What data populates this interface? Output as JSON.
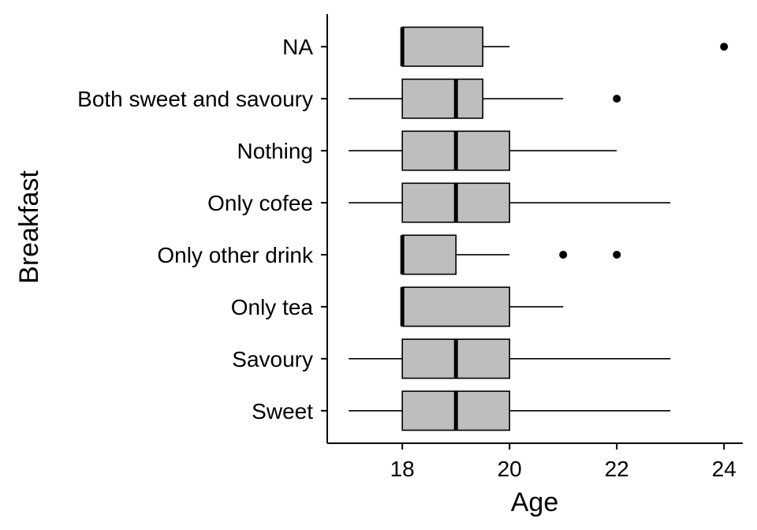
{
  "chart_data": {
    "type": "boxplot",
    "orientation": "horizontal",
    "xlabel": "Age",
    "ylabel": "Breakfast",
    "xlim": [
      16.6,
      24.35
    ],
    "xticks": [
      18,
      20,
      22,
      24
    ],
    "grid": false,
    "box_fill": "#bebebe",
    "line_color": "#000000",
    "categories": [
      "NA",
      "Both sweet and savoury",
      "Nothing",
      "Only cofee",
      "Only other drink",
      "Only tea",
      "Savoury",
      "Sweet"
    ],
    "boxes": [
      {
        "category": "NA",
        "whisker_low": 18,
        "q1": 18,
        "median": 18,
        "q3": 19.5,
        "whisker_high": 20,
        "outliers": [
          24
        ]
      },
      {
        "category": "Both sweet and savoury",
        "whisker_low": 17,
        "q1": 18,
        "median": 19,
        "q3": 19.5,
        "whisker_high": 21,
        "outliers": [
          22
        ]
      },
      {
        "category": "Nothing",
        "whisker_low": 17,
        "q1": 18,
        "median": 19,
        "q3": 20,
        "whisker_high": 22,
        "outliers": []
      },
      {
        "category": "Only cofee",
        "whisker_low": 17,
        "q1": 18,
        "median": 19,
        "q3": 20,
        "whisker_high": 23,
        "outliers": []
      },
      {
        "category": "Only other drink",
        "whisker_low": 18,
        "q1": 18,
        "median": 18,
        "q3": 19,
        "whisker_high": 20,
        "outliers": [
          21,
          22
        ]
      },
      {
        "category": "Only tea",
        "whisker_low": 18,
        "q1": 18,
        "median": 18,
        "q3": 20,
        "whisker_high": 21,
        "outliers": []
      },
      {
        "category": "Savoury",
        "whisker_low": 17,
        "q1": 18,
        "median": 19,
        "q3": 20,
        "whisker_high": 23,
        "outliers": []
      },
      {
        "category": "Sweet",
        "whisker_low": 17,
        "q1": 18,
        "median": 19,
        "q3": 20,
        "whisker_high": 23,
        "outliers": []
      }
    ]
  }
}
